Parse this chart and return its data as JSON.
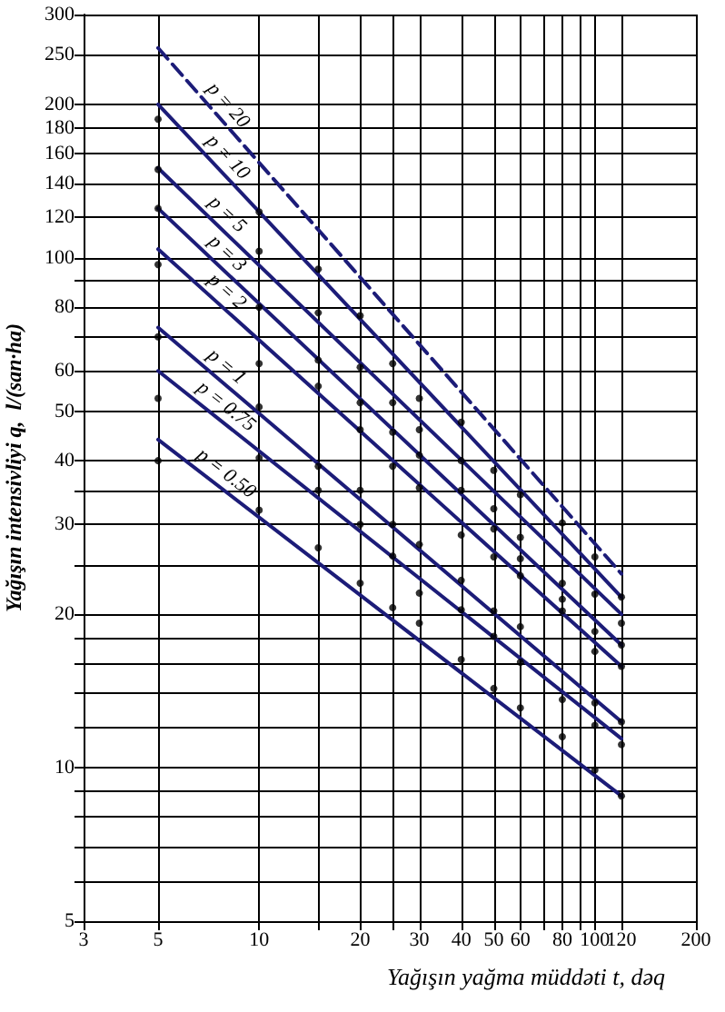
{
  "chart_data": {
    "type": "line",
    "xlabel": "Yağışın yağma müddəti t, dəq",
    "ylabel": "Yağışın intensivliyi q,  l/(san·ha)",
    "log": "xy",
    "grid": true,
    "legend": false,
    "xlim": [
      3,
      200
    ],
    "ylim": [
      5,
      300
    ],
    "xticks": [
      3,
      5,
      10,
      {
        "value": 15,
        "label": null
      },
      20,
      {
        "value": 25,
        "label": null
      },
      30,
      40,
      50,
      60,
      {
        "value": 70,
        "label": null
      },
      80,
      {
        "value": 90,
        "label": null
      },
      100,
      120,
      200
    ],
    "yticks": [
      5,
      {
        "value": 6,
        "label": null
      },
      {
        "value": 7,
        "label": null
      },
      {
        "value": 8,
        "label": null
      },
      {
        "value": 9,
        "label": null
      },
      10,
      {
        "value": 12,
        "label": null
      },
      {
        "value": 14,
        "label": null
      },
      {
        "value": 16,
        "label": null
      },
      {
        "value": 18,
        "label": null
      },
      20,
      {
        "value": 25,
        "label": null
      },
      30,
      {
        "value": 35,
        "label": null
      },
      40,
      50,
      60,
      {
        "value": 70,
        "label": null
      },
      80,
      {
        "value": 90,
        "label": null
      },
      100,
      120,
      140,
      160,
      180,
      200,
      250,
      300
    ],
    "series": [
      {
        "name": "p = 20",
        "color": "#1c1c78",
        "x": [
          5,
          120
        ],
        "values": [
          258,
          24
        ],
        "line_style": "dashed",
        "marker": "none"
      },
      {
        "name": "p = 10",
        "color": "#1c1c78",
        "x": [
          5,
          120
        ],
        "values": [
          200,
          21.6
        ],
        "marker": "none"
      },
      {
        "name": "p = 5",
        "color": "#1c1c78",
        "x": [
          5,
          120
        ],
        "values": [
          150,
          20
        ],
        "marker": "none"
      },
      {
        "name": "p = 3",
        "color": "#1c1c78",
        "x": [
          5,
          120
        ],
        "values": [
          125,
          17.4
        ],
        "marker": "none"
      },
      {
        "name": "p = 2",
        "color": "#1c1c78",
        "x": [
          5,
          120
        ],
        "values": [
          104,
          15.8
        ],
        "marker": "none"
      },
      {
        "name": "p = 1",
        "color": "#1c1c78",
        "x": [
          5,
          120
        ],
        "values": [
          73,
          12.3
        ],
        "marker": "none"
      },
      {
        "name": "p = 0.75",
        "color": "#1c1c78",
        "x": [
          5,
          120
        ],
        "values": [
          60,
          11.4
        ],
        "marker": "none"
      },
      {
        "name": "p = 0.50",
        "color": "#1c1c78",
        "x": [
          5,
          120
        ],
        "values": [
          44,
          8.8
        ],
        "marker": "none"
      },
      {
        "type": "scatter",
        "color": "#000000",
        "marker": "circle",
        "x": [
          5,
          5,
          5,
          5,
          5,
          5,
          5,
          10,
          10,
          10,
          10,
          10,
          10,
          10,
          15,
          15,
          15,
          15,
          15,
          15,
          15,
          20,
          20,
          20,
          20,
          20,
          20,
          20,
          25,
          25,
          25,
          25,
          25,
          25,
          25,
          30,
          30,
          30,
          30,
          30,
          30,
          30,
          40,
          40,
          40,
          40,
          40,
          40,
          40,
          50,
          50,
          50,
          50,
          50,
          50,
          50,
          60,
          60,
          60,
          60,
          60,
          60,
          60,
          80,
          80,
          80,
          80,
          80,
          80,
          100,
          100,
          100,
          100,
          100,
          100,
          100,
          120,
          120,
          120,
          120,
          120,
          120,
          120
        ],
        "values": [
          187,
          149,
          125,
          97,
          70,
          53,
          40,
          123,
          103,
          80,
          62,
          51,
          40.5,
          32,
          95,
          78,
          63,
          56,
          39,
          35,
          27,
          77,
          61,
          52,
          46,
          35,
          30,
          23,
          62,
          52,
          45.5,
          39,
          30,
          26,
          20.6,
          53,
          46,
          41,
          35.4,
          27.4,
          22,
          19.2,
          47.6,
          40,
          35,
          28.6,
          23.3,
          20.4,
          16.3,
          38.3,
          32.2,
          29.4,
          25.9,
          20.3,
          18.1,
          14.3,
          34.3,
          28.3,
          25.7,
          23.8,
          18.9,
          16.1,
          13.1,
          30.2,
          23,
          21.4,
          20.3,
          13.6,
          11.5,
          25.9,
          21.9,
          18.5,
          16.9,
          13.4,
          12.1,
          9.9,
          21.6,
          19.2,
          17.4,
          15.8,
          12.3,
          11.1,
          8.8
        ]
      }
    ]
  }
}
